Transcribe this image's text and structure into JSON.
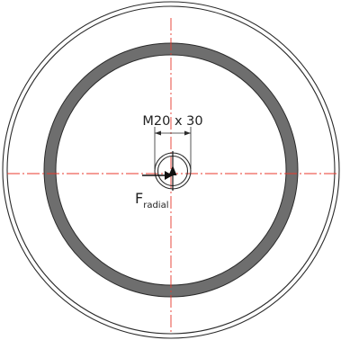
{
  "annotations": {
    "thread_size": "M20 x 30",
    "force_symbol": "F",
    "force_subscript": "radial"
  },
  "colors": {
    "outline": "#2b2b2b",
    "ring_fill": "#6e6e6e",
    "center_line": "#e8382c",
    "arrow": "#111111"
  }
}
